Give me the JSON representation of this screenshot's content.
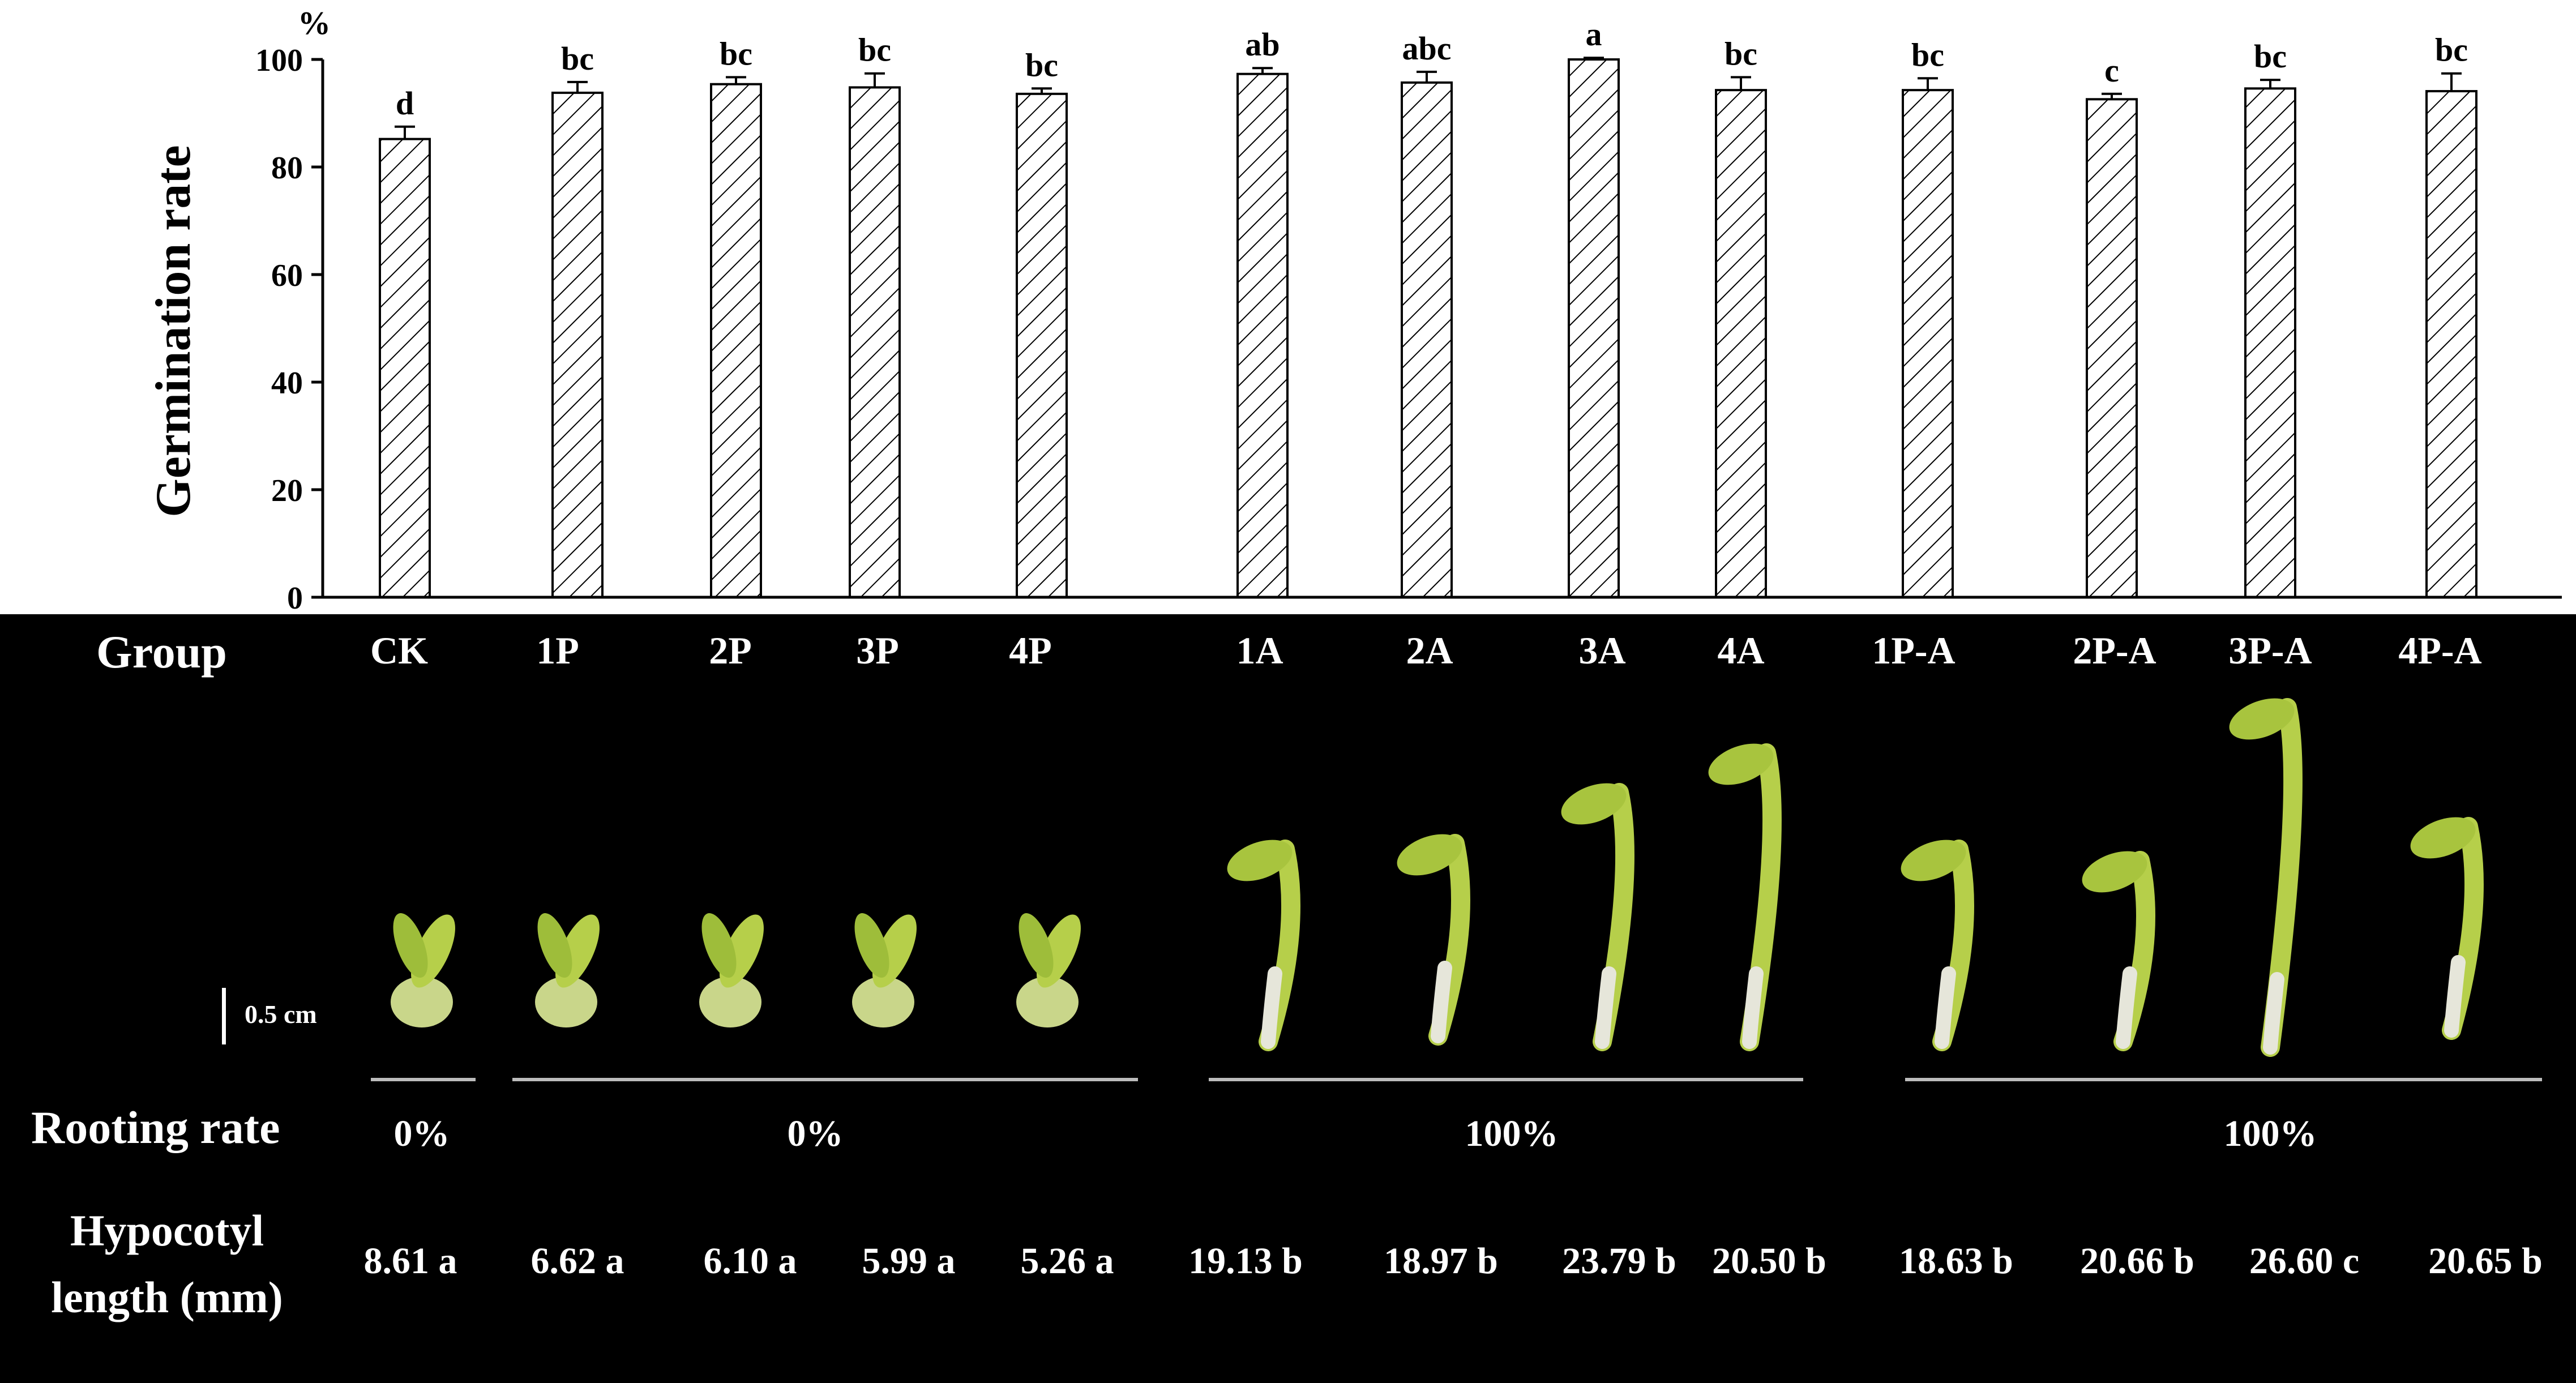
{
  "chart_data": {
    "type": "bar",
    "ylabel": "Germination rate",
    "y_unit": "%",
    "ylim": [
      0,
      100
    ],
    "yticks": [
      0,
      20,
      40,
      60,
      80,
      100
    ],
    "categories": [
      "CK",
      "1P",
      "2P",
      "3P",
      "4P",
      "1A",
      "2A",
      "3A",
      "4A",
      "1P-A",
      "2P-A",
      "3P-A",
      "4P-A"
    ],
    "values": [
      85.2,
      93.8,
      95.4,
      94.8,
      93.6,
      97.3,
      95.7,
      100.0,
      94.3,
      94.3,
      92.6,
      94.6,
      94.1
    ],
    "errors": [
      2.3,
      2.0,
      1.3,
      2.6,
      1.0,
      1.1,
      2.0,
      0.3,
      2.4,
      2.2,
      1.0,
      1.6,
      3.3
    ],
    "letters": [
      "d",
      "bc",
      "bc",
      "bc",
      "bc",
      "ab",
      "abc",
      "a",
      "bc",
      "bc",
      "c",
      "bc",
      "bc"
    ],
    "fill": "diagonal hatch",
    "grid": false
  },
  "panel": {
    "group_label": "Group",
    "groups": [
      "CK",
      "1P",
      "2P",
      "3P",
      "4P",
      "1A",
      "2A",
      "3A",
      "4A",
      "1P-A",
      "2P-A",
      "3P-A",
      "4P-A"
    ],
    "scale_bar": "0.5 cm",
    "rooting_label": "Rooting rate",
    "rooting_rates": [
      "0%",
      "0%",
      "100%",
      "100%"
    ],
    "hypocotyl_label_line1": "Hypocotyl",
    "hypocotyl_label_line2": "length (mm)",
    "hypocotyl_lengths": [
      "8.61 a",
      "6.62 a",
      "6.10 a",
      "5.99 a",
      "5.26 a",
      "19.13 b",
      "18.97 b",
      "23.79 b",
      "20.50 b",
      "18.63 b",
      "20.66 b",
      "26.60 c",
      "20.65 b"
    ]
  },
  "colors": {
    "panel_bg": "#000000",
    "seedling_green": "#b6cf4a",
    "root_white": "#e6e6da"
  }
}
